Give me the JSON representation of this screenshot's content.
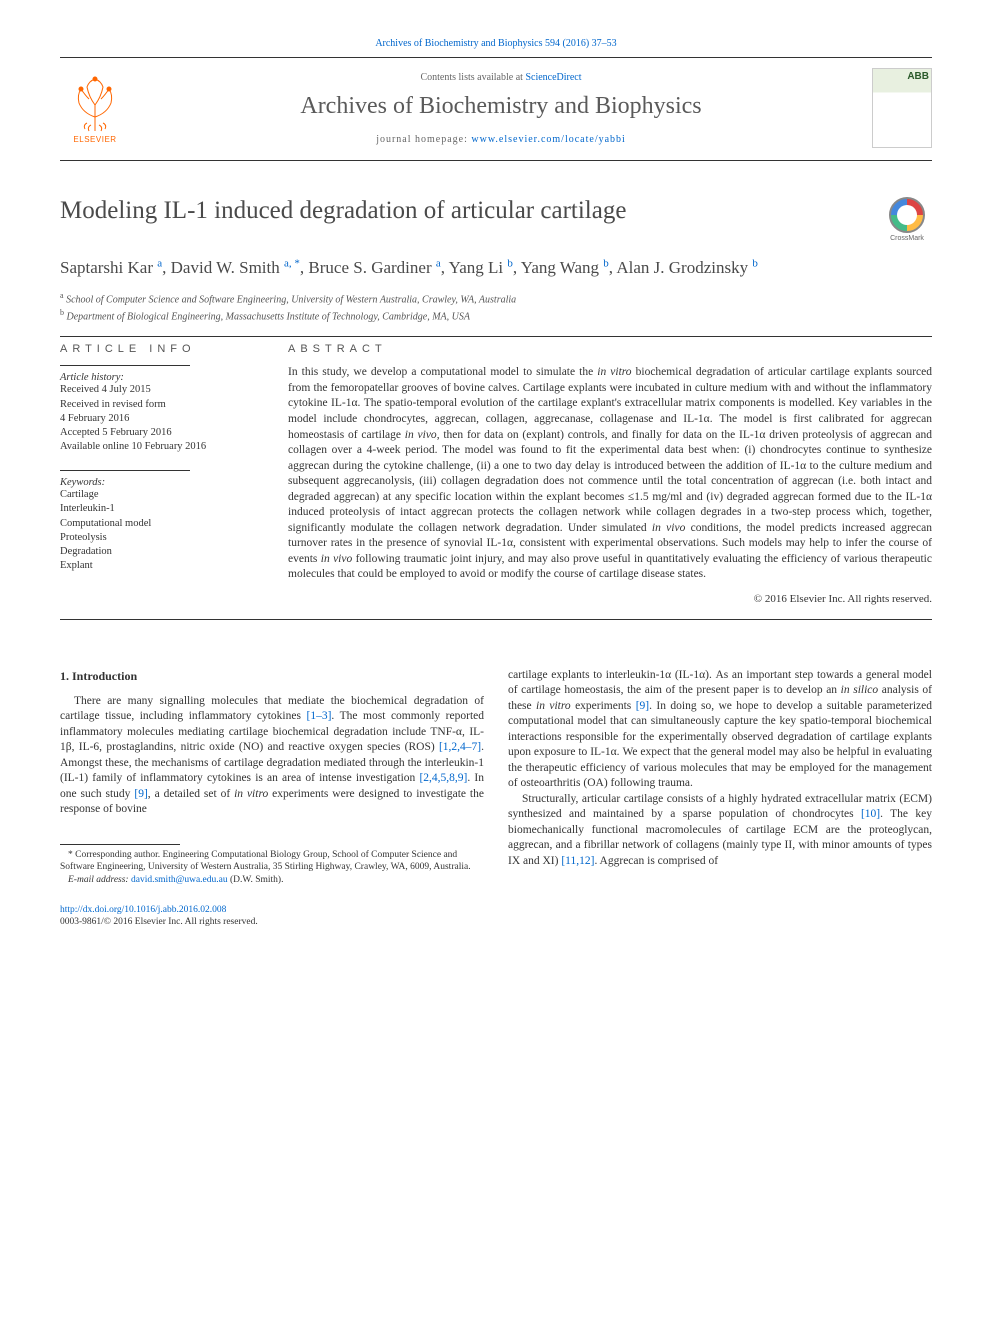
{
  "citation": "Archives of Biochemistry and Biophysics 594 (2016) 37–53",
  "header": {
    "contents_prefix": "Contents lists available at ",
    "contents_link": "ScienceDirect",
    "journal_name": "Archives of Biochemistry and Biophysics",
    "homepage_prefix": "journal homepage: ",
    "homepage_url": "www.elsevier.com/locate/yabbi",
    "elsevier_label": "ELSEVIER",
    "cover_abbrev": "ABB"
  },
  "crossmark_label": "CrossMark",
  "title": "Modeling IL-1 induced degradation of articular cartilage",
  "authors_html": "Saptarshi Kar <sup>a</sup>, David W. Smith <sup>a, *</sup>, Bruce S. Gardiner <sup>a</sup>, Yang Li <sup>b</sup>, Yang Wang <sup>b</sup>, Alan J. Grodzinsky <sup>b</sup>",
  "affiliations": [
    {
      "sup": "a",
      "text": "School of Computer Science and Software Engineering, University of Western Australia, Crawley, WA, Australia"
    },
    {
      "sup": "b",
      "text": "Department of Biological Engineering, Massachusetts Institute of Technology, Cambridge, MA, USA"
    }
  ],
  "article_info_heading": "ARTICLE INFO",
  "abstract_heading": "ABSTRACT",
  "history": {
    "label": "Article history:",
    "lines": [
      "Received 4 July 2015",
      "Received in revised form",
      "4 February 2016",
      "Accepted 5 February 2016",
      "Available online 10 February 2016"
    ]
  },
  "keywords": {
    "label": "Keywords:",
    "items": [
      "Cartilage",
      "Interleukin-1",
      "Computational model",
      "Proteolysis",
      "Degradation",
      "Explant"
    ]
  },
  "abstract": "In this study, we develop a computational model to simulate the in vitro biochemical degradation of articular cartilage explants sourced from the femoropatellar grooves of bovine calves. Cartilage explants were incubated in culture medium with and without the inflammatory cytokine IL-1α. The spatio-temporal evolution of the cartilage explant's extracellular matrix components is modelled. Key variables in the model include chondrocytes, aggrecan, collagen, aggrecanase, collagenase and IL-1α. The model is first calibrated for aggrecan homeostasis of cartilage in vivo, then for data on (explant) controls, and finally for data on the IL-1α driven proteolysis of aggrecan and collagen over a 4-week period. The model was found to fit the experimental data best when: (i) chondrocytes continue to synthesize aggrecan during the cytokine challenge, (ii) a one to two day delay is introduced between the addition of IL-1α to the culture medium and subsequent aggrecanolysis, (iii) collagen degradation does not commence until the total concentration of aggrecan (i.e. both intact and degraded aggrecan) at any specific location within the explant becomes ≤1.5 mg/ml and (iv) degraded aggrecan formed due to the IL-1α induced proteolysis of intact aggrecan protects the collagen network while collagen degrades in a two-step process which, together, significantly modulate the collagen network degradation. Under simulated in vivo conditions, the model predicts increased aggrecan turnover rates in the presence of synovial IL-1α, consistent with experimental observations. Such models may help to infer the course of events in vivo following traumatic joint injury, and may also prove useful in quantitatively evaluating the efficiency of various therapeutic molecules that could be employed to avoid or modify the course of cartilage disease states.",
  "copyright": "© 2016 Elsevier Inc. All rights reserved.",
  "intro_heading": "1. Introduction",
  "intro_p1_pre": "There are many signalling molecules that mediate the biochemical degradation of cartilage tissue, including inflammatory cytokines ",
  "intro_ref1": "[1–3]",
  "intro_p1_mid1": ". The most commonly reported inflammatory molecules mediating cartilage biochemical degradation include TNF-α, IL-1β, IL-6, prostaglandins, nitric oxide (NO) and reactive oxygen species (ROS) ",
  "intro_ref2": "[1,2,4–7]",
  "intro_p1_mid2": ". Amongst these, the mechanisms of cartilage degradation mediated through the interleukin-1 (IL-1) family of inflammatory cytokines is an area of intense investigation ",
  "intro_ref3": "[2,4,5,8,9]",
  "intro_p1_mid3": ". In one such study ",
  "intro_ref4": "[9]",
  "intro_p1_end": ", a detailed set of in vitro experiments were designed to investigate the response of bovine",
  "col2_p1_pre": "cartilage explants to interleukin-1α (IL-1α). As an important step towards a general model of cartilage homeostasis, the aim of the present paper is to develop an in silico analysis of these in vitro experiments ",
  "col2_ref1": "[9]",
  "col2_p1_end": ". In doing so, we hope to develop a suitable parameterized computational model that can simultaneously capture the key spatio-temporal biochemical interactions responsible for the experimentally observed degradation of cartilage explants upon exposure to IL-1α. We expect that the general model may also be helpful in evaluating the therapeutic efficiency of various molecules that may be employed for the management of osteoarthritis (OA) following trauma.",
  "col2_p2_pre": "Structurally, articular cartilage consists of a highly hydrated extracellular matrix (ECM) synthesized and maintained by a sparse population of chondrocytes ",
  "col2_ref2": "[10]",
  "col2_p2_mid": ". The key biomechanically functional macromolecules of cartilage ECM are the proteoglycan, aggrecan, and a fibrillar network of collagens (mainly type II, with minor amounts of types IX and XI) ",
  "col2_ref3": "[11,12]",
  "col2_p2_end": ". Aggrecan is comprised of",
  "footnote": {
    "corr": "* Corresponding author. Engineering Computational Biology Group, School of Computer Science and Software Engineering, University of Western Australia, 35 Stirling Highway, Crawley, WA, 6009, Australia.",
    "email_label": "E-mail address: ",
    "email": "david.smith@uwa.edu.au",
    "email_suffix": " (D.W. Smith)."
  },
  "footer": {
    "doi": "http://dx.doi.org/10.1016/j.abb.2016.02.008",
    "issn_line": "0003-9861/© 2016 Elsevier Inc. All rights reserved."
  },
  "colors": {
    "link": "#0066cc",
    "elsevier": "#ff6600",
    "text": "#333333",
    "heading": "#4a4a4a"
  }
}
